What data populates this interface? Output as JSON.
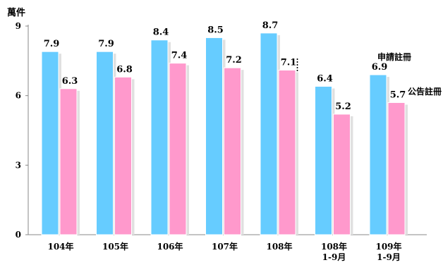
{
  "chart_data": {
    "type": "bar",
    "unit_label": "萬件",
    "categories": [
      [
        "104年"
      ],
      [
        "105年"
      ],
      [
        "106年"
      ],
      [
        "107年"
      ],
      [
        "108年"
      ],
      [
        "108年",
        "1-9月"
      ],
      [
        "109年",
        "1-9月"
      ]
    ],
    "series": [
      {
        "name": "申請註冊",
        "color": "#66CCFF",
        "values": [
          7.9,
          7.9,
          8.4,
          8.5,
          8.7,
          6.4,
          6.9
        ],
        "labels": [
          "7.9",
          "7.9",
          "8.4",
          "8.5",
          "8.7",
          "6.4",
          "6.9"
        ]
      },
      {
        "name": "公告註冊",
        "color": "#FF99CC",
        "values": [
          6.3,
          6.8,
          7.4,
          7.2,
          7.1,
          5.2,
          5.7
        ],
        "labels": [
          "6.3",
          "6.8",
          "7.4",
          "7.2",
          "7.1",
          "5.2",
          "5.7"
        ]
      }
    ],
    "y_ticks": [
      "0",
      "3",
      "6",
      "9"
    ],
    "ylim": [
      0,
      9
    ],
    "grid": false,
    "divider_after_category": 4,
    "divider_style": "dotted"
  }
}
